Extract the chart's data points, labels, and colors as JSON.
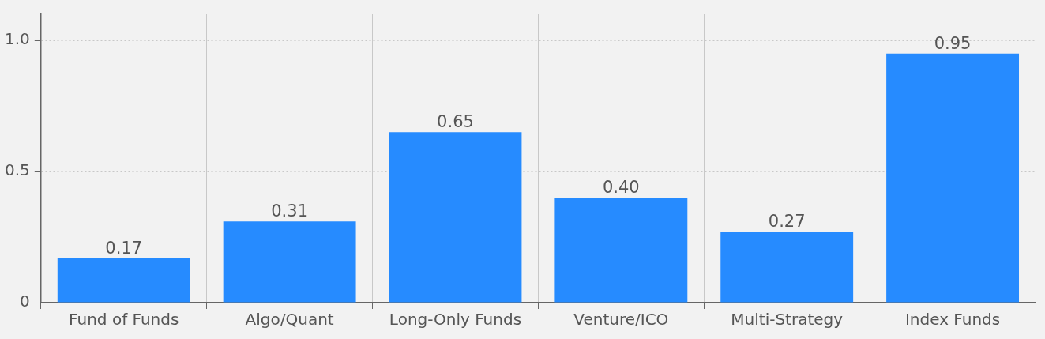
{
  "chart_data": {
    "type": "bar",
    "categories": [
      "Fund of Funds",
      "Algo/Quant",
      "Long-Only Funds",
      "Venture/ICO",
      "Multi-Strategy",
      "Index Funds"
    ],
    "values": [
      0.17,
      0.31,
      0.65,
      0.4,
      0.27,
      0.95
    ],
    "value_labels": [
      "0.17",
      "0.31",
      "0.65",
      "0.40",
      "0.27",
      "0.95"
    ],
    "color": "#268bff",
    "ylim": [
      0,
      1.1
    ],
    "yticks": [
      0,
      0.5,
      {
        "value": 1,
        "label": "1.0"
      }
    ],
    "grid": true
  }
}
